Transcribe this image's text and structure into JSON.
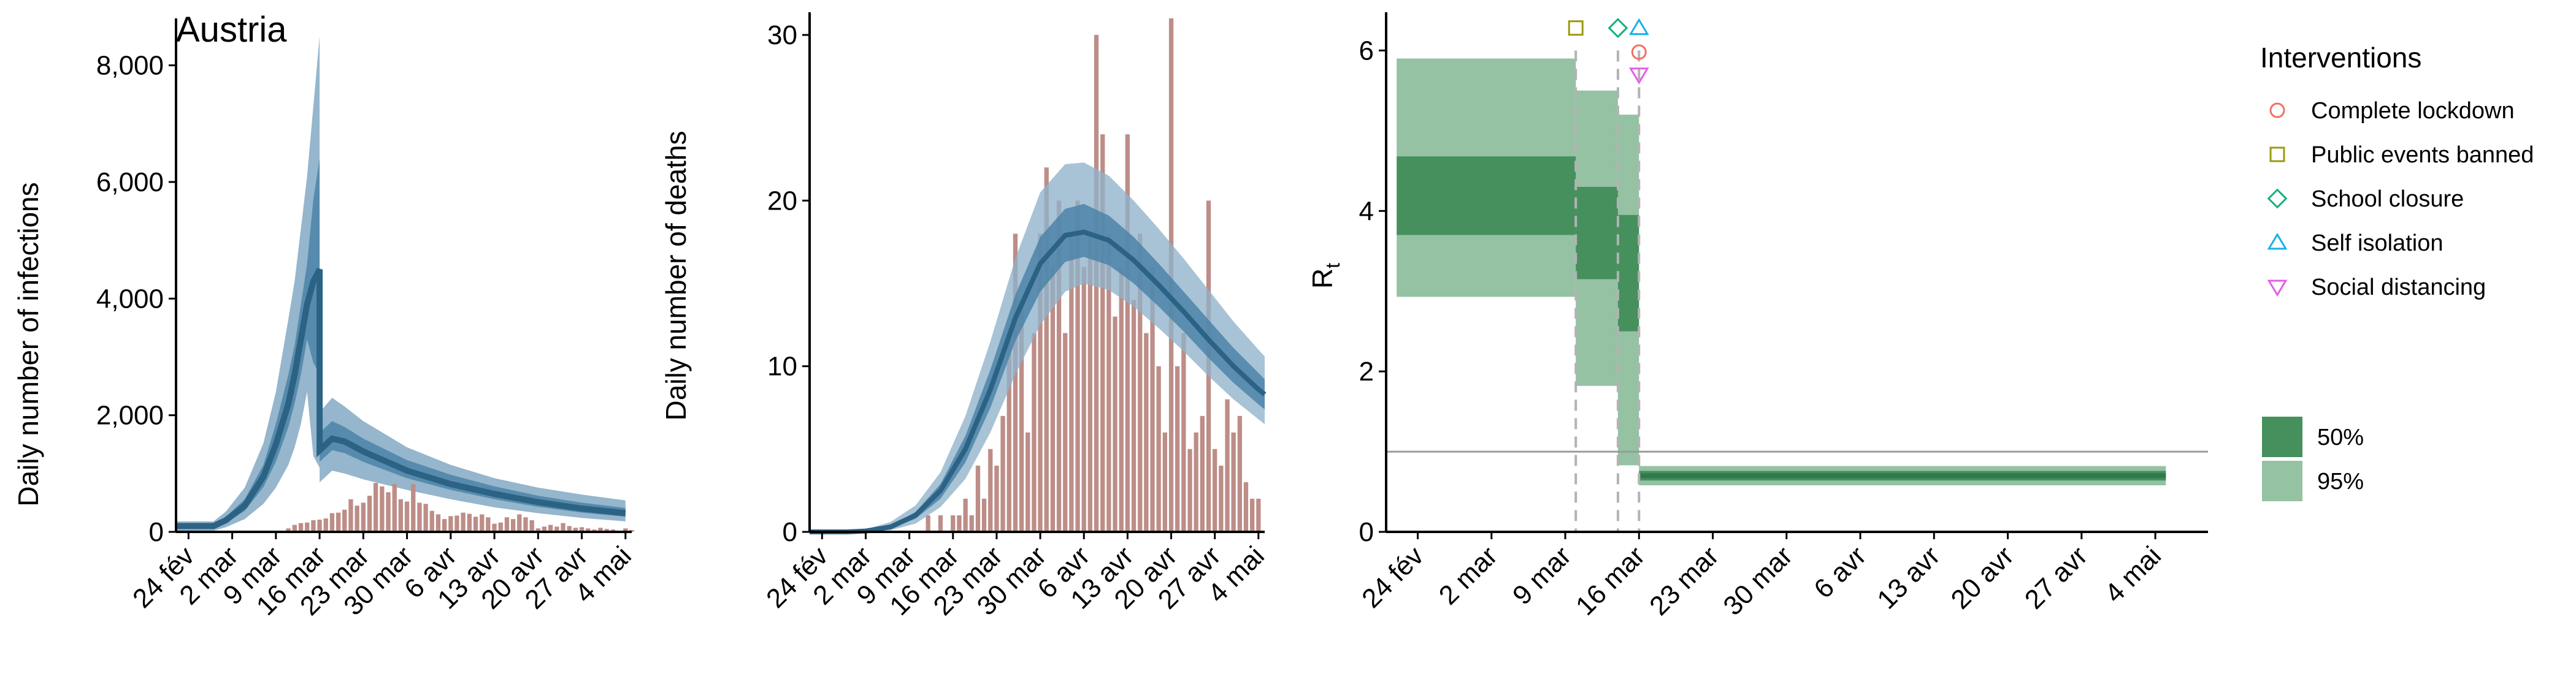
{
  "colors": {
    "infections_ci95": "#8fb2c9",
    "infections_ci50": "#4c84a8",
    "infections_median": "#2c6385",
    "bars": "#bd8d87",
    "rt_ci95": "#95c2a2",
    "rt_ci50": "#46905e",
    "rt_median": "#2f7a4a",
    "marker_lockdown": "#f26f62",
    "marker_public_events": "#9b9a11",
    "marker_school": "#14b07f",
    "marker_self_isolation": "#18b2e6",
    "marker_social_distancing": "#e45ee6"
  },
  "x_tick_labels": [
    "24 fév",
    "2 mar",
    "9 mar",
    "16 mar",
    "23 mar",
    "30 mar",
    "6 avr",
    "13 avr",
    "20 avr",
    "27 avr",
    "4 mai"
  ],
  "chart_data": [
    {
      "type": "area",
      "title": "Austria",
      "ylabel": "Daily number of infections",
      "xlabel": "",
      "x_range": [
        "2020-02-22",
        "2020-05-05"
      ],
      "ylim": [
        0,
        8700
      ],
      "y_ticks": [
        0,
        2000,
        4000,
        6000,
        8000
      ],
      "y_tick_labels": [
        "0",
        "2,000",
        "4,000",
        "6,000",
        "8,000"
      ],
      "model_band": [
        {
          "date": "2020-02-22",
          "lo95": 20,
          "hi95": 180,
          "lo50": 60,
          "hi50": 130,
          "median": 100
        },
        {
          "date": "2020-02-28",
          "lo95": 20,
          "hi95": 180,
          "lo50": 60,
          "hi50": 130,
          "median": 100
        },
        {
          "date": "2020-03-01",
          "lo95": 80,
          "hi95": 350,
          "lo50": 150,
          "hi50": 260,
          "median": 200
        },
        {
          "date": "2020-03-04",
          "lo95": 220,
          "hi95": 760,
          "lo50": 360,
          "hi50": 560,
          "median": 450
        },
        {
          "date": "2020-03-07",
          "lo95": 480,
          "hi95": 1520,
          "lo50": 770,
          "hi50": 1150,
          "median": 950
        },
        {
          "date": "2020-03-09",
          "lo95": 760,
          "hi95": 2400,
          "lo50": 1200,
          "hi50": 1850,
          "median": 1500
        },
        {
          "date": "2020-03-11",
          "lo95": 1150,
          "hi95": 3650,
          "lo50": 1800,
          "hi50": 2700,
          "median": 2200
        },
        {
          "date": "2020-03-12",
          "lo95": 1450,
          "hi95": 4300,
          "lo50": 2200,
          "hi50": 3200,
          "median": 2700
        },
        {
          "date": "2020-03-13",
          "lo95": 1850,
          "hi95": 5200,
          "lo50": 2700,
          "hi50": 3900,
          "median": 3300
        },
        {
          "date": "2020-03-14",
          "lo95": 2400,
          "hi95": 6100,
          "lo50": 3300,
          "hi50": 4600,
          "median": 3900
        },
        {
          "date": "2020-03-15",
          "lo95": 1300,
          "hi95": 7300,
          "lo50": 2900,
          "hi50": 5700,
          "median": 4300
        },
        {
          "date": "2020-03-16",
          "lo95": 1100,
          "hi95": 8500,
          "lo50": 2700,
          "hi50": 6400,
          "median": 4500
        },
        {
          "date": "2020-03-16",
          "lo95": 850,
          "hi95": 2050,
          "lo50": 1200,
          "hi50": 1700,
          "median": 1400
        },
        {
          "date": "2020-03-18",
          "lo95": 1050,
          "hi95": 2300,
          "lo50": 1400,
          "hi50": 1900,
          "median": 1600
        },
        {
          "date": "2020-03-20",
          "lo95": 1000,
          "hi95": 2150,
          "lo50": 1350,
          "hi50": 1800,
          "median": 1550
        },
        {
          "date": "2020-03-23",
          "lo95": 900,
          "hi95": 1900,
          "lo50": 1200,
          "hi50": 1600,
          "median": 1380
        },
        {
          "date": "2020-03-30",
          "lo95": 720,
          "hi95": 1450,
          "lo50": 920,
          "hi50": 1230,
          "median": 1050
        },
        {
          "date": "2020-04-06",
          "lo95": 560,
          "hi95": 1150,
          "lo50": 720,
          "hi50": 980,
          "median": 820
        },
        {
          "date": "2020-04-13",
          "lo95": 420,
          "hi95": 920,
          "lo50": 560,
          "hi50": 780,
          "median": 650
        },
        {
          "date": "2020-04-20",
          "lo95": 320,
          "hi95": 760,
          "lo50": 430,
          "hi50": 620,
          "median": 510
        },
        {
          "date": "2020-04-27",
          "lo95": 240,
          "hi95": 640,
          "lo50": 330,
          "hi50": 500,
          "median": 400
        },
        {
          "date": "2020-05-04",
          "lo95": 180,
          "hi95": 540,
          "lo50": 260,
          "hi50": 410,
          "median": 320
        }
      ],
      "bars": [
        {
          "date": "2020-03-11",
          "value": 60
        },
        {
          "date": "2020-03-12",
          "value": 120
        },
        {
          "date": "2020-03-13",
          "value": 150
        },
        {
          "date": "2020-03-14",
          "value": 160
        },
        {
          "date": "2020-03-15",
          "value": 200
        },
        {
          "date": "2020-03-16",
          "value": 210
        },
        {
          "date": "2020-03-17",
          "value": 230
        },
        {
          "date": "2020-03-18",
          "value": 320
        },
        {
          "date": "2020-03-19",
          "value": 330
        },
        {
          "date": "2020-03-20",
          "value": 380
        },
        {
          "date": "2020-03-21",
          "value": 560
        },
        {
          "date": "2020-03-22",
          "value": 450
        },
        {
          "date": "2020-03-23",
          "value": 500
        },
        {
          "date": "2020-03-24",
          "value": 620
        },
        {
          "date": "2020-03-25",
          "value": 840
        },
        {
          "date": "2020-03-26",
          "value": 780
        },
        {
          "date": "2020-03-27",
          "value": 680
        },
        {
          "date": "2020-03-28",
          "value": 820
        },
        {
          "date": "2020-03-29",
          "value": 560
        },
        {
          "date": "2020-03-30",
          "value": 520
        },
        {
          "date": "2020-03-31",
          "value": 820
        },
        {
          "date": "2020-04-01",
          "value": 500
        },
        {
          "date": "2020-04-02",
          "value": 480
        },
        {
          "date": "2020-04-03",
          "value": 360
        },
        {
          "date": "2020-04-04",
          "value": 300
        },
        {
          "date": "2020-04-05",
          "value": 220
        },
        {
          "date": "2020-04-06",
          "value": 270
        },
        {
          "date": "2020-04-07",
          "value": 280
        },
        {
          "date": "2020-04-08",
          "value": 330
        },
        {
          "date": "2020-04-09",
          "value": 310
        },
        {
          "date": "2020-04-10",
          "value": 260
        },
        {
          "date": "2020-04-11",
          "value": 300
        },
        {
          "date": "2020-04-12",
          "value": 250
        },
        {
          "date": "2020-04-13",
          "value": 140
        },
        {
          "date": "2020-04-14",
          "value": 160
        },
        {
          "date": "2020-04-15",
          "value": 250
        },
        {
          "date": "2020-04-16",
          "value": 220
        },
        {
          "date": "2020-04-17",
          "value": 300
        },
        {
          "date": "2020-04-18",
          "value": 250
        },
        {
          "date": "2020-04-19",
          "value": 200
        },
        {
          "date": "2020-04-20",
          "value": 60
        },
        {
          "date": "2020-04-21",
          "value": 90
        },
        {
          "date": "2020-04-22",
          "value": 120
        },
        {
          "date": "2020-04-23",
          "value": 90
        },
        {
          "date": "2020-04-24",
          "value": 150
        },
        {
          "date": "2020-04-25",
          "value": 100
        },
        {
          "date": "2020-04-26",
          "value": 70
        },
        {
          "date": "2020-04-27",
          "value": 80
        },
        {
          "date": "2020-04-28",
          "value": 60
        },
        {
          "date": "2020-04-29",
          "value": 40
        },
        {
          "date": "2020-04-30",
          "value": 70
        },
        {
          "date": "2020-05-01",
          "value": 50
        },
        {
          "date": "2020-05-02",
          "value": 40
        },
        {
          "date": "2020-05-03",
          "value": 20
        },
        {
          "date": "2020-05-04",
          "value": 60
        },
        {
          "date": "2020-05-05",
          "value": 30
        }
      ]
    },
    {
      "type": "area",
      "title": "",
      "ylabel": "Daily number of deaths",
      "xlabel": "",
      "x_range": [
        "2020-02-22",
        "2020-05-05"
      ],
      "ylim": [
        0,
        31
      ],
      "y_ticks": [
        0,
        10,
        20,
        30
      ],
      "y_tick_labels": [
        "0",
        "10",
        "20",
        "30"
      ],
      "model_band": [
        {
          "date": "2020-02-22",
          "lo95": 0,
          "hi95": 0,
          "lo50": 0,
          "hi50": 0,
          "median": 0
        },
        {
          "date": "2020-02-28",
          "lo95": 0,
          "hi95": 0,
          "lo50": 0,
          "hi50": 0,
          "median": 0
        },
        {
          "date": "2020-03-02",
          "lo95": 0,
          "hi95": 0.15,
          "lo50": 0,
          "hi50": 0.1,
          "median": 0.05
        },
        {
          "date": "2020-03-06",
          "lo95": 0.1,
          "hi95": 0.6,
          "lo50": 0.2,
          "hi50": 0.4,
          "median": 0.3
        },
        {
          "date": "2020-03-10",
          "lo95": 0.5,
          "hi95": 1.6,
          "lo50": 0.8,
          "hi50": 1.2,
          "median": 1.0
        },
        {
          "date": "2020-03-14",
          "lo95": 1.5,
          "hi95": 3.6,
          "lo50": 2.0,
          "hi50": 2.9,
          "median": 2.5
        },
        {
          "date": "2020-03-18",
          "lo95": 3.2,
          "hi95": 7.0,
          "lo50": 4.2,
          "hi50": 5.8,
          "median": 5.0
        },
        {
          "date": "2020-03-22",
          "lo95": 6.0,
          "hi95": 11.5,
          "lo50": 7.5,
          "hi50": 9.8,
          "median": 8.6
        },
        {
          "date": "2020-03-26",
          "lo95": 9.5,
          "hi95": 16.5,
          "lo50": 11.5,
          "hi50": 14.3,
          "median": 12.9
        },
        {
          "date": "2020-03-30",
          "lo95": 12.5,
          "hi95": 20.5,
          "lo50": 14.5,
          "hi50": 17.8,
          "median": 16.2
        },
        {
          "date": "2020-04-03",
          "lo95": 14.5,
          "hi95": 22.2,
          "lo50": 16.3,
          "hi50": 19.5,
          "median": 17.9
        },
        {
          "date": "2020-04-06",
          "lo95": 15.0,
          "hi95": 22.3,
          "lo50": 16.6,
          "hi50": 19.8,
          "median": 18.1
        },
        {
          "date": "2020-04-10",
          "lo95": 14.6,
          "hi95": 21.5,
          "lo50": 16.1,
          "hi50": 19.1,
          "median": 17.6
        },
        {
          "date": "2020-04-14",
          "lo95": 13.6,
          "hi95": 20.0,
          "lo50": 15.0,
          "hi50": 17.8,
          "median": 16.4
        },
        {
          "date": "2020-04-18",
          "lo95": 12.3,
          "hi95": 18.3,
          "lo50": 13.6,
          "hi50": 16.2,
          "median": 14.9
        },
        {
          "date": "2020-04-22",
          "lo95": 10.9,
          "hi95": 16.5,
          "lo50": 12.1,
          "hi50": 14.5,
          "median": 13.3
        },
        {
          "date": "2020-04-26",
          "lo95": 9.4,
          "hi95": 14.6,
          "lo50": 10.5,
          "hi50": 12.8,
          "median": 11.6
        },
        {
          "date": "2020-04-30",
          "lo95": 8.0,
          "hi95": 12.7,
          "lo50": 9.0,
          "hi50": 11.1,
          "median": 10.0
        },
        {
          "date": "2020-05-04",
          "lo95": 6.8,
          "hi95": 11.0,
          "lo50": 7.7,
          "hi50": 9.6,
          "median": 8.6
        },
        {
          "date": "2020-05-05",
          "lo95": 6.5,
          "hi95": 10.6,
          "lo50": 7.4,
          "hi50": 9.2,
          "median": 8.3
        }
      ],
      "bars": [
        {
          "date": "2020-03-12",
          "value": 1
        },
        {
          "date": "2020-03-14",
          "value": 1
        },
        {
          "date": "2020-03-16",
          "value": 1
        },
        {
          "date": "2020-03-17",
          "value": 1
        },
        {
          "date": "2020-03-18",
          "value": 2
        },
        {
          "date": "2020-03-19",
          "value": 1
        },
        {
          "date": "2020-03-20",
          "value": 4
        },
        {
          "date": "2020-03-21",
          "value": 2
        },
        {
          "date": "2020-03-22",
          "value": 5
        },
        {
          "date": "2020-03-23",
          "value": 4
        },
        {
          "date": "2020-03-24",
          "value": 7
        },
        {
          "date": "2020-03-25",
          "value": 12
        },
        {
          "date": "2020-03-26",
          "value": 18
        },
        {
          "date": "2020-03-27",
          "value": 14
        },
        {
          "date": "2020-03-28",
          "value": 6
        },
        {
          "date": "2020-03-29",
          "value": 12
        },
        {
          "date": "2020-03-30",
          "value": 18
        },
        {
          "date": "2020-03-31",
          "value": 22
        },
        {
          "date": "2020-04-01",
          "value": 16
        },
        {
          "date": "2020-04-02",
          "value": 20
        },
        {
          "date": "2020-04-03",
          "value": 12
        },
        {
          "date": "2020-04-04",
          "value": 18
        },
        {
          "date": "2020-04-05",
          "value": 20
        },
        {
          "date": "2020-04-06",
          "value": 16
        },
        {
          "date": "2020-04-07",
          "value": 18
        },
        {
          "date": "2020-04-08",
          "value": 30
        },
        {
          "date": "2020-04-09",
          "value": 24
        },
        {
          "date": "2020-04-10",
          "value": 18
        },
        {
          "date": "2020-04-11",
          "value": 13
        },
        {
          "date": "2020-04-12",
          "value": 16
        },
        {
          "date": "2020-04-13",
          "value": 24
        },
        {
          "date": "2020-04-14",
          "value": 14
        },
        {
          "date": "2020-04-15",
          "value": 18
        },
        {
          "date": "2020-04-16",
          "value": 12
        },
        {
          "date": "2020-04-17",
          "value": 16
        },
        {
          "date": "2020-04-18",
          "value": 10
        },
        {
          "date": "2020-04-19",
          "value": 6
        },
        {
          "date": "2020-04-20",
          "value": 31
        },
        {
          "date": "2020-04-21",
          "value": 10
        },
        {
          "date": "2020-04-22",
          "value": 12
        },
        {
          "date": "2020-04-23",
          "value": 5
        },
        {
          "date": "2020-04-24",
          "value": 6
        },
        {
          "date": "2020-04-25",
          "value": 7
        },
        {
          "date": "2020-04-26",
          "value": 20
        },
        {
          "date": "2020-04-27",
          "value": 5
        },
        {
          "date": "2020-04-28",
          "value": 4
        },
        {
          "date": "2020-04-29",
          "value": 8
        },
        {
          "date": "2020-04-30",
          "value": 6
        },
        {
          "date": "2020-05-01",
          "value": 7
        },
        {
          "date": "2020-05-02",
          "value": 3
        },
        {
          "date": "2020-05-03",
          "value": 2
        },
        {
          "date": "2020-05-04",
          "value": 2
        }
      ]
    },
    {
      "type": "area",
      "title": "",
      "ylabel": "R",
      "ylabel_subscript": "t",
      "xlabel": "",
      "x_range": [
        "2020-02-21",
        "2020-05-09"
      ],
      "ylim": [
        0,
        6.4
      ],
      "y_ticks": [
        0,
        2,
        4,
        6
      ],
      "y_tick_labels": [
        "0",
        "2",
        "4",
        "6"
      ],
      "reference_line": 1,
      "rt_segments": [
        {
          "start": "2020-02-22",
          "end": "2020-03-10",
          "lo95": 2.93,
          "hi95": 5.9,
          "lo50": 3.7,
          "hi50": 4.68,
          "median": 4.2
        },
        {
          "start": "2020-03-10",
          "end": "2020-03-14",
          "lo95": 1.82,
          "hi95": 5.5,
          "lo50": 3.15,
          "hi50": 4.3,
          "median": 3.7
        },
        {
          "start": "2020-03-14",
          "end": "2020-03-16",
          "lo95": 0.83,
          "hi95": 5.2,
          "lo50": 2.5,
          "hi50": 3.95,
          "median": 3.2
        },
        {
          "start": "2020-03-16",
          "end": "2020-05-05",
          "lo95": 0.58,
          "hi95": 0.82,
          "lo50": 0.64,
          "hi50": 0.76,
          "median": 0.7
        }
      ],
      "interventions": [
        {
          "name": "Public events banned",
          "date": "2020-03-10",
          "marker": "square",
          "value": 6.28
        },
        {
          "name": "School closure",
          "date": "2020-03-14",
          "marker": "diamond",
          "value": 6.28
        },
        {
          "name": "Self isolation",
          "date": "2020-03-16",
          "marker": "triangle-up",
          "value": 6.28
        },
        {
          "name": "Complete lockdown",
          "date": "2020-03-16",
          "marker": "circle",
          "value": 5.98
        },
        {
          "name": "Social distancing",
          "date": "2020-03-16",
          "marker": "triangle-down",
          "value": 5.7
        }
      ]
    }
  ],
  "legend": {
    "title": "Interventions",
    "items": [
      {
        "label": "Complete lockdown",
        "marker": "circle"
      },
      {
        "label": "Public events banned",
        "marker": "square"
      },
      {
        "label": "School closure",
        "marker": "diamond"
      },
      {
        "label": "Self isolation",
        "marker": "triangle-up"
      },
      {
        "label": "Social distancing",
        "marker": "triangle-down"
      }
    ],
    "ci": [
      {
        "label": "50%"
      },
      {
        "label": "95%"
      }
    ]
  }
}
